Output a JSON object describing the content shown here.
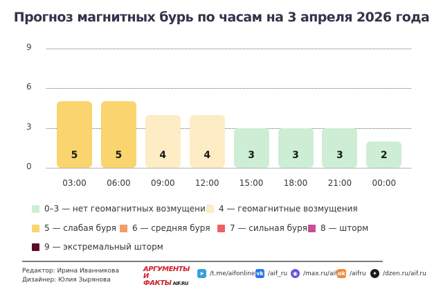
{
  "title": "Прогноз магнитных бурь по часам на 3 апреля 2026 года",
  "chart_data": {
    "type": "bar",
    "title": "Прогноз магнитных бурь по часам на 3 апреля 2026 года",
    "xlabel": "",
    "ylabel": "",
    "ylim": [
      0,
      9
    ],
    "yticks": [
      "0",
      "3",
      "6",
      "9"
    ],
    "grid": true,
    "categories": [
      "03:00",
      "06:00",
      "09:00",
      "12:00",
      "15:00",
      "18:00",
      "21:00",
      "00:00"
    ],
    "values": [
      5,
      5,
      4,
      4,
      3,
      3,
      3,
      2
    ],
    "value_labels": [
      "5",
      "5",
      "4",
      "4",
      "3",
      "3",
      "3",
      "2"
    ],
    "bar_colors": [
      "#fad46e",
      "#fad46e",
      "#fdecc4",
      "#fdecc4",
      "#cdeed4",
      "#cdeed4",
      "#cdeed4",
      "#cdeed4"
    ],
    "legend_position": "bottom",
    "legend": [
      {
        "label": "0–3 — нет геомагнитных возмущений",
        "color": "#cdeed4"
      },
      {
        "label": "4 — геомагнитные возмущения",
        "color": "#fdecc4"
      },
      {
        "label": "5 — слабая буря",
        "color": "#fad46e"
      },
      {
        "label": "6 — средняя буря",
        "color": "#f29c6a"
      },
      {
        "label": "7 — сильная буря",
        "color": "#ec6263"
      },
      {
        "label": "8 — шторм",
        "color": "#c84f95"
      },
      {
        "label": "9 — экстремальный шторм",
        "color": "#5c0a2a"
      }
    ]
  },
  "footer": {
    "editor": "Редактор: Ирина Иванникова",
    "designer": "Дизайнер: Юлия Зырянова",
    "logo_line1": "АРГУМЕНТЫ",
    "logo_line2": "И ФАКТЫ",
    "logo_site": "AIF.RU",
    "socials": [
      {
        "icon": "telegram-icon",
        "glyph": "➤",
        "color": "#3a9fdc",
        "label": "/t.me/aifonline"
      },
      {
        "icon": "vk-icon",
        "glyph": "vk",
        "color": "#2775e8",
        "label": "/aif_ru"
      },
      {
        "icon": "max-icon",
        "glyph": "◉",
        "color": "#6a4fe0",
        "label": "/max.ru/aif"
      },
      {
        "icon": "ok-icon",
        "glyph": "ok",
        "color": "#ee8a3a",
        "label": "/aifru"
      },
      {
        "icon": "dzen-icon",
        "glyph": "✦",
        "color": "#1a1a1a",
        "label": "/dzen.ru/aif.ru"
      }
    ]
  }
}
